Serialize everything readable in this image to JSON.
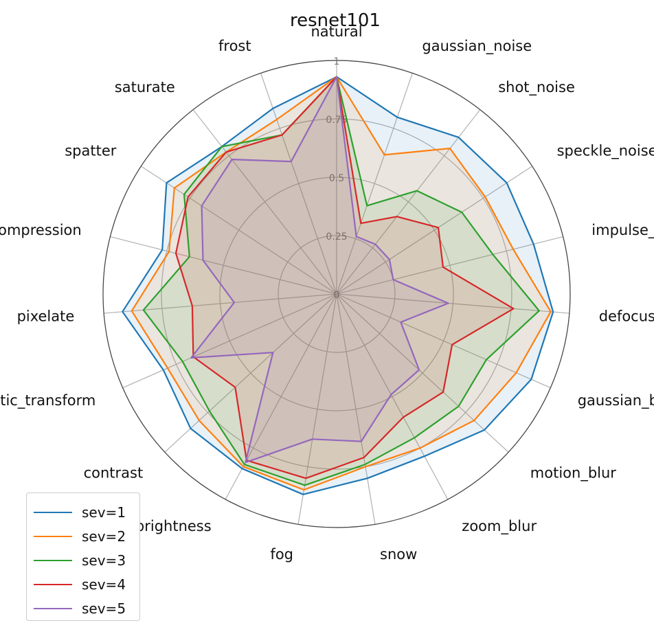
{
  "chart_data": {
    "type": "radar",
    "title": "resnet101",
    "categories": [
      "natural",
      "gaussian_noise",
      "shot_noise",
      "speckle_noise",
      "impulse_noise",
      "defocus_blur",
      "gaussian_blur",
      "motion_blur",
      "zoom_blur",
      "snow",
      "fog",
      "brightness",
      "contrast",
      "elastic_transform",
      "pixelate",
      "jpeg_compression",
      "spatter",
      "saturate",
      "frost"
    ],
    "radial_ticks": [
      0,
      0.25,
      0.5,
      0.75,
      1
    ],
    "radial_tick_labels": [
      "0",
      "0.25",
      "0.5",
      "0.75",
      "1"
    ],
    "rlim": [
      0,
      1
    ],
    "legend_position": "lower-left",
    "series": [
      {
        "name": "sev=1",
        "color": "#1f77b4",
        "values": [
          0.93,
          0.8,
          0.85,
          0.87,
          0.87,
          0.93,
          0.91,
          0.86,
          0.79,
          0.8,
          0.87,
          0.85,
          0.85,
          0.81,
          0.92,
          0.77,
          0.87,
          0.8,
          0.84
        ]
      },
      {
        "name": "sev=2",
        "color": "#ff7f0e",
        "values": [
          0.93,
          0.63,
          0.79,
          0.76,
          0.78,
          0.92,
          0.84,
          0.8,
          0.75,
          0.75,
          0.85,
          0.84,
          0.8,
          0.79,
          0.88,
          0.74,
          0.83,
          0.77,
          0.79
        ]
      },
      {
        "name": "sev=3",
        "color": "#2ca02c",
        "values": [
          0.93,
          0.4,
          0.56,
          0.64,
          0.69,
          0.87,
          0.7,
          0.71,
          0.7,
          0.74,
          0.83,
          0.83,
          0.74,
          0.72,
          0.83,
          0.65,
          0.78,
          0.8,
          0.72
        ]
      },
      {
        "name": "sev=4",
        "color": "#d62728",
        "values": [
          0.93,
          0.32,
          0.42,
          0.52,
          0.47,
          0.76,
          0.54,
          0.62,
          0.6,
          0.71,
          0.8,
          0.81,
          0.59,
          0.67,
          0.62,
          0.71,
          0.76,
          0.77,
          0.72
        ]
      },
      {
        "name": "sev=5",
        "color": "#9467bd",
        "values": [
          0.93,
          0.26,
          0.27,
          0.27,
          0.25,
          0.48,
          0.3,
          0.48,
          0.49,
          0.64,
          0.63,
          0.82,
          0.37,
          0.68,
          0.44,
          0.59,
          0.69,
          0.73,
          0.6
        ]
      }
    ]
  }
}
